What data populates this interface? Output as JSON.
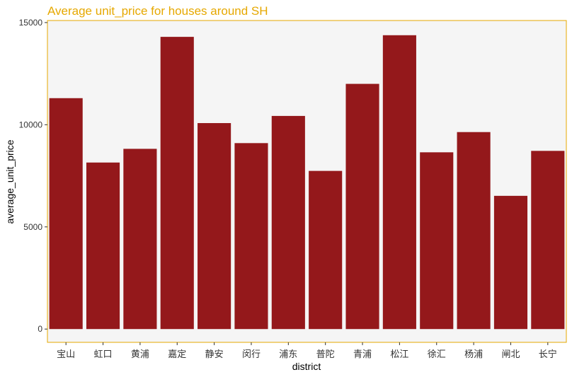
{
  "colors": {
    "bar": "#94181b",
    "panel_background": "#f5f5f5",
    "panel_border": "#e6a800",
    "title": "#e6a800"
  },
  "chart_data": {
    "type": "bar",
    "title": "Average unit_price for houses around SH",
    "xlabel": "district",
    "ylabel": "average_unit_price",
    "categories": [
      "宝山",
      "虹口",
      "黄浦",
      "嘉定",
      "静安",
      "闵行",
      "浦东",
      "普陀",
      "青浦",
      "松江",
      "徐汇",
      "杨浦",
      "闸北",
      "长宁"
    ],
    "values": [
      11300,
      8150,
      8820,
      14300,
      10080,
      9100,
      10430,
      7740,
      12000,
      14380,
      8650,
      9640,
      6520,
      8720
    ],
    "ylim": [
      -650,
      15100
    ],
    "yticks": [
      0,
      5000,
      10000,
      15000
    ],
    "ytick_labels": [
      "0",
      "5000",
      "10000",
      "15000"
    ],
    "grid": false,
    "legend": "none"
  }
}
